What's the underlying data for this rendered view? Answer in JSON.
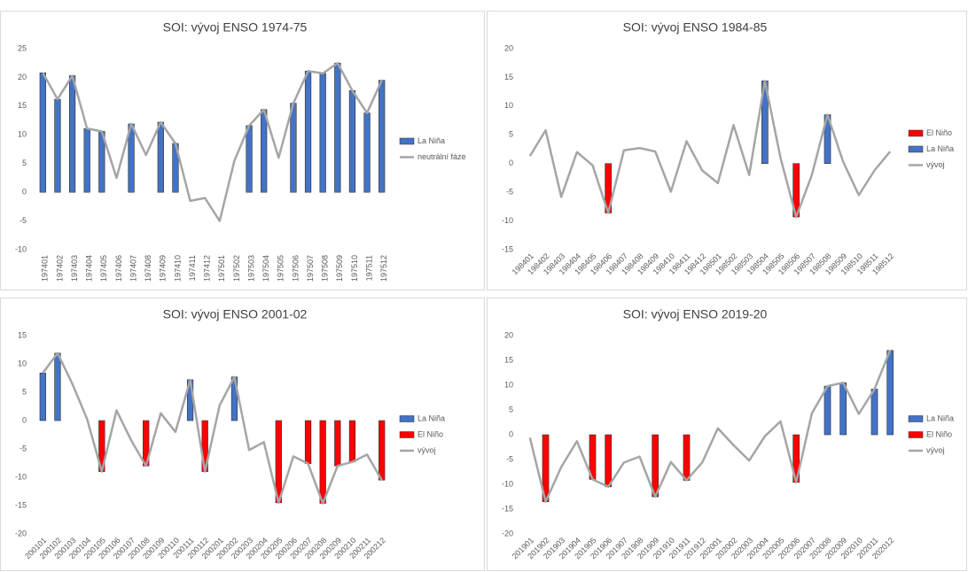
{
  "chart_data": [
    {
      "type": "bar",
      "title": "SOI: vývoj ENSO 1974-75",
      "categories": [
        "197401",
        "197402",
        "197403",
        "197404",
        "197405",
        "197406",
        "197407",
        "197408",
        "197409",
        "197410",
        "197411",
        "197412",
        "197501",
        "197502",
        "197503",
        "197504",
        "197505",
        "197506",
        "197507",
        "197508",
        "197509",
        "197510",
        "197511",
        "197512"
      ],
      "series": [
        {
          "name": "La Niña",
          "type": "bar",
          "color": "#4472c4",
          "values": [
            20.8,
            16.2,
            20.3,
            11.1,
            10.6,
            null,
            11.9,
            null,
            12.2,
            8.5,
            null,
            null,
            null,
            null,
            11.6,
            14.4,
            null,
            15.5,
            21.1,
            20.7,
            22.5,
            17.7,
            13.8,
            19.5
          ]
        },
        {
          "name": "neutrální fáze",
          "type": "line",
          "color": "#a5a5a5",
          "values": [
            20.8,
            16.2,
            20.3,
            11.1,
            10.6,
            2.5,
            11.9,
            6.5,
            12.2,
            8.5,
            -1.5,
            -1,
            -5,
            5.5,
            11.6,
            14.4,
            6,
            15.5,
            21.1,
            20.7,
            22.5,
            17.7,
            13.8,
            19.5
          ]
        }
      ],
      "ylim": [
        -10,
        25
      ],
      "yticks": [
        -10,
        -5,
        0,
        5,
        10,
        15,
        20,
        25
      ],
      "legend": "right"
    },
    {
      "type": "bar",
      "title": "SOI: vývoj ENSO 1984-85",
      "categories": [
        "198401",
        "198402",
        "198403",
        "198404",
        "198405",
        "198406",
        "198407",
        "198408",
        "198409",
        "198410",
        "198411",
        "198412",
        "198501",
        "198502",
        "198503",
        "198504",
        "198505",
        "198506",
        "198507",
        "198508",
        "198509",
        "198510",
        "198511",
        "198512"
      ],
      "series": [
        {
          "name": "El Niño",
          "type": "bar",
          "color": "#ff0000",
          "values": [
            null,
            null,
            null,
            null,
            null,
            -8.6,
            null,
            null,
            null,
            null,
            null,
            null,
            null,
            null,
            null,
            null,
            null,
            -9.3,
            null,
            null,
            null,
            null,
            null,
            null
          ]
        },
        {
          "name": "La Niña",
          "type": "bar",
          "color": "#4472c4",
          "values": [
            null,
            null,
            null,
            null,
            null,
            null,
            null,
            null,
            null,
            null,
            null,
            null,
            null,
            null,
            null,
            14.4,
            null,
            null,
            null,
            8.5,
            null,
            null,
            null,
            null
          ]
        },
        {
          "name": "vývoj",
          "type": "line",
          "color": "#a5a5a5",
          "values": [
            1.3,
            5.8,
            -5.8,
            2,
            -0.3,
            -8.6,
            2.3,
            2.7,
            2.1,
            -4.9,
            3.9,
            -1.2,
            -3.4,
            6.7,
            -2,
            14.4,
            1,
            -9.3,
            -2,
            8.5,
            0.3,
            -5.5,
            -1.2,
            2.1
          ]
        }
      ],
      "ylim": [
        -15,
        20
      ],
      "yticks": [
        -15,
        -10,
        -5,
        0,
        5,
        10,
        15,
        20
      ],
      "legend": "right"
    },
    {
      "type": "bar",
      "title": "SOI: vývoj ENSO 2001-02",
      "categories": [
        "200101",
        "200102",
        "200103",
        "200104",
        "200105",
        "200106",
        "200107",
        "200108",
        "200109",
        "200110",
        "200111",
        "200112",
        "200201",
        "200202",
        "200203",
        "200204",
        "200205",
        "200206",
        "200207",
        "200208",
        "200209",
        "200210",
        "200211",
        "200212"
      ],
      "series": [
        {
          "name": "La Niña",
          "type": "bar",
          "color": "#4472c4",
          "values": [
            8.4,
            11.9,
            null,
            null,
            null,
            null,
            null,
            null,
            null,
            null,
            7.2,
            null,
            null,
            7.7,
            null,
            null,
            null,
            null,
            null,
            null,
            null,
            null,
            null,
            null
          ]
        },
        {
          "name": "El Niño",
          "type": "bar",
          "color": "#ff0000",
          "values": [
            null,
            null,
            null,
            null,
            -9,
            null,
            null,
            -8,
            null,
            null,
            null,
            -9,
            null,
            null,
            null,
            null,
            -14.5,
            null,
            -7.6,
            -14.6,
            -8,
            -7.3,
            null,
            -10.5
          ]
        },
        {
          "name": "vývoj",
          "type": "line",
          "color": "#a5a5a5",
          "values": [
            8.4,
            11.9,
            6.5,
            0.3,
            -9,
            1.8,
            -3.5,
            -8,
            1.3,
            -2,
            7.2,
            -9,
            2.7,
            7.7,
            -5.2,
            -3.8,
            -14.5,
            -6.3,
            -7.6,
            -14.6,
            -8,
            -7.3,
            -6,
            -10.5
          ]
        }
      ],
      "ylim": [
        -20,
        15
      ],
      "yticks": [
        -20,
        -15,
        -10,
        -5,
        0,
        5,
        10,
        15
      ],
      "legend": "right"
    },
    {
      "type": "bar",
      "title": "SOI: vývoj ENSO 2019-20",
      "categories": [
        "201901",
        "201902",
        "201903",
        "201904",
        "201905",
        "201906",
        "201907",
        "201908",
        "201909",
        "201910",
        "201911",
        "201912",
        "202001",
        "202002",
        "202003",
        "202004",
        "202005",
        "202006",
        "202007",
        "202008",
        "202009",
        "202010",
        "202011",
        "202012"
      ],
      "series": [
        {
          "name": "La Niña",
          "type": "bar",
          "color": "#4472c4",
          "values": [
            null,
            null,
            null,
            null,
            null,
            null,
            null,
            null,
            null,
            null,
            null,
            null,
            null,
            null,
            null,
            null,
            null,
            null,
            null,
            9.8,
            10.5,
            null,
            9.2,
            17
          ]
        },
        {
          "name": "El Niño",
          "type": "bar",
          "color": "#ff0000",
          "values": [
            null,
            -13.5,
            null,
            null,
            -9,
            -10.5,
            null,
            null,
            -12.5,
            null,
            -9.2,
            null,
            null,
            null,
            null,
            null,
            null,
            -9.6,
            null,
            null,
            null,
            null,
            null,
            null
          ]
        },
        {
          "name": "vývoj",
          "type": "line",
          "color": "#a5a5a5",
          "values": [
            -0.6,
            -13.5,
            -6.5,
            -1.3,
            -9,
            -10.5,
            -5.6,
            -4.4,
            -12.5,
            -5.5,
            -9.2,
            -5.6,
            1.3,
            -2.1,
            -5.2,
            -0.3,
            2.7,
            -9.6,
            4.3,
            9.8,
            10.5,
            4.2,
            9.2,
            17
          ]
        }
      ],
      "ylim": [
        -20,
        20
      ],
      "yticks": [
        -20,
        -15,
        -10,
        -5,
        0,
        5,
        10,
        15,
        20
      ],
      "legend": "right"
    }
  ]
}
